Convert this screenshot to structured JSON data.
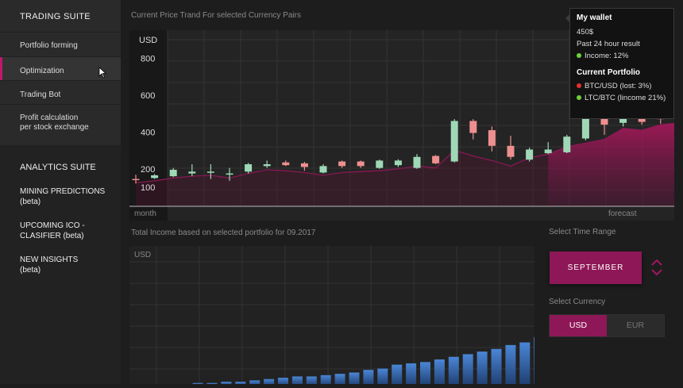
{
  "sidebar": {
    "trading_title": "TRADING SUITE",
    "trading_items": [
      {
        "label": "Portfolio forming"
      },
      {
        "label": "Optimization"
      },
      {
        "label": "Trading Bot"
      },
      {
        "label": "Profit calculation\nper stock exchange"
      }
    ],
    "active_index": 1,
    "analytics_title": "ANALYTICS SUITE",
    "analytics_items": [
      {
        "label": "MINING PREDICTIONS\n(beta)"
      },
      {
        "label": "UPCOMING ICO -\nCLASIFIER (beta)"
      },
      {
        "label": "NEW INSIGHTS\n(beta)"
      }
    ]
  },
  "price_chart": {
    "section_title": "Current Price Trand For selected Currency Pairs",
    "unit": "USD",
    "y_ticks": [
      "800",
      "600",
      "400",
      "200",
      "100"
    ],
    "x_label_left": "month",
    "x_label_right": "forecast"
  },
  "income_chart": {
    "section_title": "Total Income based on selected portfolio for 09.2017",
    "unit": "USD"
  },
  "wallet": {
    "title": "My wallet",
    "balance": "450$",
    "period": "Past 24 hour result",
    "income": "Income: 12%",
    "portfolio_title": "Current Portfolio",
    "items": [
      {
        "label": "BTC/USD  (lost: 3%)",
        "color": "#e03030"
      },
      {
        "label": "LTC/BTC  (lincome 21%)",
        "color": "#6bd13a"
      }
    ],
    "income_color": "#6bd13a"
  },
  "controls": {
    "time_range_label": "Select Time Range",
    "month_value": "SEPTEMBER",
    "currency_label": "Select Currency",
    "currency_options": [
      "USD",
      "EUR"
    ],
    "selected_currency": "USD"
  },
  "colors": {
    "accent": "#8e1857",
    "candle_up": "#9fd8b7",
    "candle_down": "#ee8f8f",
    "bar": "#3f78c4"
  },
  "chart_data": [
    {
      "type": "line",
      "title": "Current Price Trand For selected Currency Pairs",
      "ylabel": "USD",
      "xlabel": "month",
      "annotation": "forecast",
      "y_ticks": [
        800,
        600,
        400,
        200,
        100
      ],
      "candles": [
        {
          "open": 145,
          "close": 145,
          "high": 168,
          "low": 120,
          "dir": "down"
        },
        {
          "open": 150,
          "close": 165,
          "high": 172,
          "low": 145,
          "dir": "up"
        },
        {
          "open": 160,
          "close": 195,
          "high": 205,
          "low": 155,
          "dir": "up"
        },
        {
          "open": 175,
          "close": 185,
          "high": 225,
          "low": 160,
          "dir": "up"
        },
        {
          "open": 180,
          "close": 185,
          "high": 225,
          "low": 145,
          "dir": "up"
        },
        {
          "open": 170,
          "close": 175,
          "high": 205,
          "low": 135,
          "dir": "up"
        },
        {
          "open": 185,
          "close": 225,
          "high": 232,
          "low": 175,
          "dir": "up"
        },
        {
          "open": 215,
          "close": 225,
          "high": 245,
          "low": 205,
          "dir": "up"
        },
        {
          "open": 235,
          "close": 220,
          "high": 245,
          "low": 215,
          "dir": "down"
        },
        {
          "open": 230,
          "close": 210,
          "high": 238,
          "low": 190,
          "dir": "down"
        },
        {
          "open": 180,
          "close": 215,
          "high": 225,
          "low": 175,
          "dir": "up"
        },
        {
          "open": 240,
          "close": 215,
          "high": 245,
          "low": 205,
          "dir": "down"
        },
        {
          "open": 240,
          "close": 215,
          "high": 245,
          "low": 205,
          "dir": "down"
        },
        {
          "open": 205,
          "close": 245,
          "high": 250,
          "low": 200,
          "dir": "up"
        },
        {
          "open": 220,
          "close": 245,
          "high": 252,
          "low": 210,
          "dir": "up"
        },
        {
          "open": 205,
          "close": 265,
          "high": 280,
          "low": 200,
          "dir": "up"
        },
        {
          "open": 270,
          "close": 230,
          "high": 275,
          "low": 225,
          "dir": "down"
        },
        {
          "open": 240,
          "close": 460,
          "high": 470,
          "low": 235,
          "dir": "up"
        },
        {
          "open": 460,
          "close": 395,
          "high": 470,
          "low": 360,
          "dir": "down"
        },
        {
          "open": 410,
          "close": 325,
          "high": 430,
          "low": 295,
          "dir": "down"
        },
        {
          "open": 325,
          "close": 265,
          "high": 380,
          "low": 250,
          "dir": "down"
        },
        {
          "open": 250,
          "close": 305,
          "high": 315,
          "low": 240,
          "dir": "up"
        },
        {
          "open": 285,
          "close": 305,
          "high": 345,
          "low": 280,
          "dir": "up"
        },
        {
          "open": 290,
          "close": 375,
          "high": 385,
          "low": 285,
          "dir": "up"
        },
        {
          "open": 365,
          "close": 515,
          "high": 520,
          "low": 355,
          "dir": "up"
        },
        {
          "open": 505,
          "close": 440,
          "high": 515,
          "low": 385,
          "dir": "down"
        },
        {
          "open": 450,
          "close": 515,
          "high": 525,
          "low": 430,
          "dir": "up"
        },
        {
          "open": 505,
          "close": 455,
          "high": 530,
          "low": 440,
          "dir": "down"
        },
        {
          "open": 495,
          "close": 470,
          "high": 510,
          "low": 445,
          "dir": "down"
        },
        {
          "open": 500,
          "close": 460,
          "high": 515,
          "low": 430,
          "dir": "down"
        }
      ],
      "trend_line": [
        125,
        135,
        150,
        160,
        165,
        150,
        175,
        195,
        190,
        180,
        165,
        180,
        185,
        190,
        200,
        215,
        205,
        300,
        270,
        245,
        215,
        260,
        280,
        320,
        340,
        360,
        420,
        410,
        440,
        450
      ]
    },
    {
      "type": "bar",
      "title": "Total Income based on selected portfolio for 09.2017",
      "ylabel": "USD",
      "values": [
        1,
        1,
        1,
        1,
        2,
        2,
        3,
        3,
        4,
        5,
        6,
        7,
        7,
        8,
        9,
        10,
        12,
        13,
        16,
        17,
        18,
        20,
        22,
        24,
        26,
        28,
        31,
        33,
        37,
        40,
        43,
        46,
        50,
        55,
        62,
        68,
        72
      ]
    }
  ]
}
